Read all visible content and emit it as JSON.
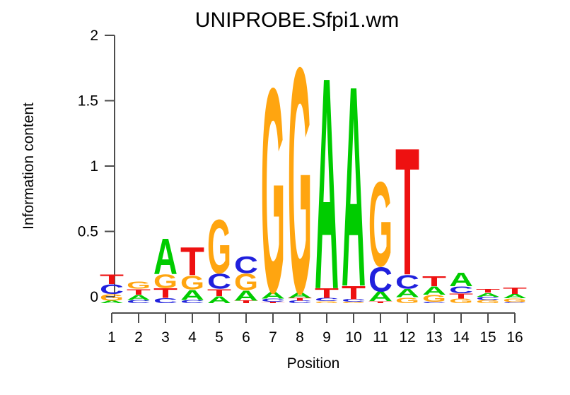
{
  "chart_data": {
    "type": "bar",
    "subtype": "sequence-logo",
    "title": "UNIPROBE.Sfpi1.wm",
    "xlabel": "Position",
    "ylabel": "Information content",
    "ylim": [
      0,
      2
    ],
    "yticks": [
      "0",
      "0.5",
      "1",
      "1.5",
      "2"
    ],
    "xticks": [
      "1",
      "2",
      "3",
      "4",
      "5",
      "6",
      "7",
      "8",
      "9",
      "10",
      "11",
      "12",
      "13",
      "14",
      "15",
      "16"
    ],
    "grid": false,
    "legend": false,
    "stack_order": "top-to-bottom",
    "base_colors": {
      "A": "#00CC00",
      "C": "#2020DD",
      "G": "#FFA510",
      "T": "#EE1111"
    },
    "axis_color": "#4d4d4d",
    "columns": [
      {
        "position": 1,
        "letters": [
          {
            "base": "T",
            "bits": 0.075
          },
          {
            "base": "C",
            "bits": 0.075
          },
          {
            "base": "G",
            "bits": 0.05
          },
          {
            "base": "A",
            "bits": 0.02
          }
        ]
      },
      {
        "position": 2,
        "letters": [
          {
            "base": "G",
            "bits": 0.06
          },
          {
            "base": "T",
            "bits": 0.045
          },
          {
            "base": "A",
            "bits": 0.04
          },
          {
            "base": "C",
            "bits": 0.025
          }
        ]
      },
      {
        "position": 3,
        "letters": [
          {
            "base": "A",
            "bits": 0.285
          },
          {
            "base": "G",
            "bits": 0.11
          },
          {
            "base": "T",
            "bits": 0.075
          },
          {
            "base": "C",
            "bits": 0.04
          }
        ]
      },
      {
        "position": 4,
        "letters": [
          {
            "base": "T",
            "bits": 0.225
          },
          {
            "base": "G",
            "bits": 0.11
          },
          {
            "base": "A",
            "bits": 0.08
          },
          {
            "base": "C",
            "bits": 0.025
          }
        ]
      },
      {
        "position": 5,
        "letters": [
          {
            "base": "G",
            "bits": 0.43
          },
          {
            "base": "C",
            "bits": 0.12
          },
          {
            "base": "T",
            "bits": 0.055
          },
          {
            "base": "A",
            "bits": 0.055
          }
        ]
      },
      {
        "position": 6,
        "letters": [
          {
            "base": "C",
            "bits": 0.135
          },
          {
            "base": "G",
            "bits": 0.13
          },
          {
            "base": "A",
            "bits": 0.08
          },
          {
            "base": "T",
            "bits": 0.02
          }
        ]
      },
      {
        "position": 7,
        "letters": [
          {
            "base": "G",
            "bits": 1.63
          },
          {
            "base": "A",
            "bits": 0.055
          },
          {
            "base": "C",
            "bits": 0.025
          },
          {
            "base": "T",
            "bits": 0.01
          }
        ]
      },
      {
        "position": 8,
        "letters": [
          {
            "base": "G",
            "bits": 1.8
          },
          {
            "base": "A",
            "bits": 0.045
          },
          {
            "base": "T",
            "bits": 0.02
          },
          {
            "base": "C",
            "bits": 0.02
          }
        ]
      },
      {
        "position": 9,
        "letters": [
          {
            "base": "A",
            "bits": 1.69
          },
          {
            "base": "T",
            "bits": 0.075
          },
          {
            "base": "C",
            "bits": 0.025
          },
          {
            "base": "G",
            "bits": 0.015
          }
        ]
      },
      {
        "position": 10,
        "letters": [
          {
            "base": "A",
            "bits": 1.6
          },
          {
            "base": "T",
            "bits": 0.105
          },
          {
            "base": "C",
            "bits": 0.02
          },
          {
            "base": "G",
            "bits": 0.01
          }
        ]
      },
      {
        "position": 11,
        "letters": [
          {
            "base": "G",
            "bits": 0.675
          },
          {
            "base": "C",
            "bits": 0.195
          },
          {
            "base": "A",
            "bits": 0.075
          },
          {
            "base": "T",
            "bits": 0.015
          }
        ]
      },
      {
        "position": 12,
        "letters": [
          {
            "base": "T",
            "bits": 1.015
          },
          {
            "base": "C",
            "bits": 0.11
          },
          {
            "base": "A",
            "bits": 0.065
          },
          {
            "base": "G",
            "bits": 0.045
          }
        ]
      },
      {
        "position": 13,
        "letters": [
          {
            "base": "T",
            "bits": 0.08
          },
          {
            "base": "A",
            "bits": 0.065
          },
          {
            "base": "G",
            "bits": 0.055
          },
          {
            "base": "C",
            "bits": 0.01
          }
        ]
      },
      {
        "position": 14,
        "letters": [
          {
            "base": "A",
            "bits": 0.11
          },
          {
            "base": "C",
            "bits": 0.055
          },
          {
            "base": "T",
            "bits": 0.04
          },
          {
            "base": "G",
            "bits": 0.035
          }
        ]
      },
      {
        "position": 15,
        "letters": [
          {
            "base": "T",
            "bits": 0.03
          },
          {
            "base": "A",
            "bits": 0.03
          },
          {
            "base": "C",
            "bits": 0.025
          },
          {
            "base": "G",
            "bits": 0.025
          }
        ]
      },
      {
        "position": 16,
        "letters": [
          {
            "base": "T",
            "bits": 0.05
          },
          {
            "base": "A",
            "bits": 0.032
          },
          {
            "base": "G",
            "bits": 0.03
          },
          {
            "base": "C",
            "bits": 0.008
          }
        ]
      }
    ]
  }
}
